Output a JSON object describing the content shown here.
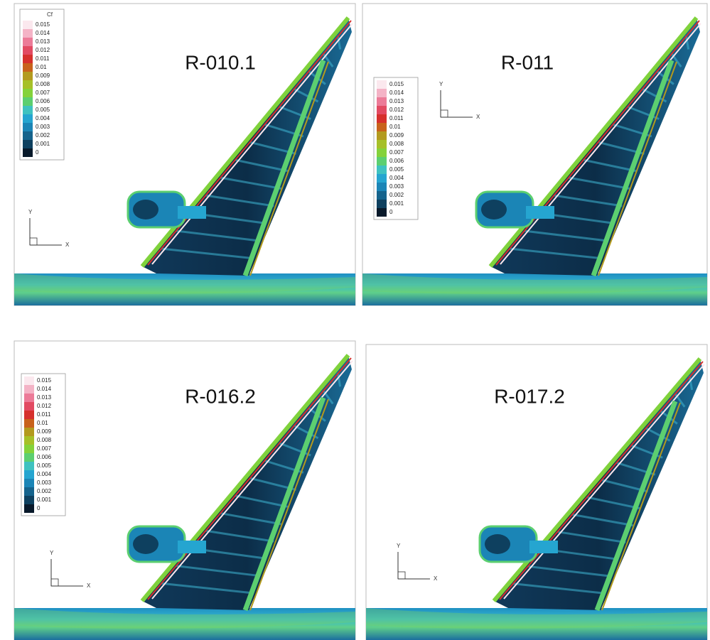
{
  "panels": [
    {
      "title": "R-010.1",
      "legend": {
        "header": "Cf",
        "levels": [
          0.015,
          0.014,
          0.013,
          0.012,
          0.011,
          0.01,
          0.009,
          0.008,
          0.007,
          0.006,
          0.005,
          0.004,
          0.003,
          0.002,
          0.001,
          0
        ],
        "colors": [
          "#fbe8ee",
          "#f4b3c6",
          "#ec7b98",
          "#e24a62",
          "#d6302c",
          "#c8621b",
          "#b39a1e",
          "#a6c028",
          "#84d23a",
          "#5ccf70",
          "#3fc2c0",
          "#25a5d0",
          "#1b85b6",
          "#15638c",
          "#0e405f",
          "#08192a"
        ]
      },
      "axes": {
        "y": "Y",
        "x": "X"
      }
    },
    {
      "title": "R-011",
      "legend": {
        "levels": [
          0.015,
          0.014,
          0.013,
          0.012,
          0.011,
          0.01,
          0.009,
          0.008,
          0.007,
          0.006,
          0.005,
          0.004,
          0.003,
          0.002,
          0.001,
          0
        ],
        "colors": [
          "#fbe8ee",
          "#f4b3c6",
          "#ec7b98",
          "#e24a62",
          "#d6302c",
          "#c8621b",
          "#b39a1e",
          "#a6c028",
          "#84d23a",
          "#5ccf70",
          "#3fc2c0",
          "#25a5d0",
          "#1b85b6",
          "#15638c",
          "#0e405f",
          "#08192a"
        ]
      },
      "axes": {
        "y": "Y",
        "x": "X"
      }
    },
    {
      "title": "R-016.2",
      "legend": {
        "levels": [
          0.015,
          0.014,
          0.013,
          0.012,
          0.011,
          0.01,
          0.009,
          0.008,
          0.007,
          0.006,
          0.005,
          0.004,
          0.003,
          0.002,
          0.001,
          0
        ],
        "colors": [
          "#fbe8ee",
          "#f4b3c6",
          "#ec7b98",
          "#e24a62",
          "#d6302c",
          "#c8621b",
          "#b39a1e",
          "#a6c028",
          "#84d23a",
          "#5ccf70",
          "#3fc2c0",
          "#25a5d0",
          "#1b85b6",
          "#15638c",
          "#0e405f",
          "#08192a"
        ]
      },
      "axes": {
        "y": "Y",
        "x": "X"
      }
    },
    {
      "title": "R-017.2",
      "axes": {
        "y": "Y",
        "x": "X"
      }
    }
  ]
}
